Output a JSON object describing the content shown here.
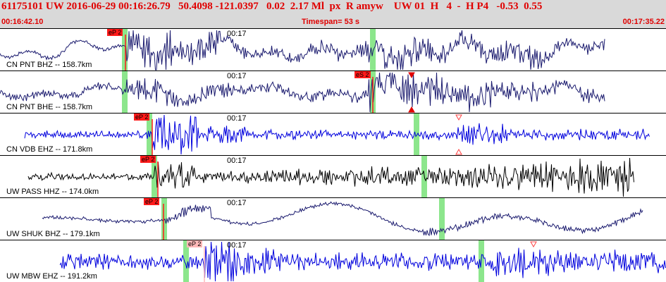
{
  "header": {
    "event_line": "61175101 UW 2016-06-29 00:16:26.79   50.4098 -121.0397   0.02  2.17 Ml  px  R amyw    UW 01  H   4  -  H P4   -0.53  0.55",
    "start_time": "00:16:42.10",
    "timespan": "Timespan=  53 s",
    "end_time": "00:17:35.22"
  },
  "colors": {
    "header_text": "#e00000",
    "header_bg": "#d9d9d9",
    "trace_navy": "#1a1a6e",
    "trace_blue": "#0000dd",
    "trace_black": "#000000",
    "pick_red": "#ff1a1a",
    "pick_pink": "#ffb8b8",
    "model_green": "#8ce68c"
  },
  "traces": [
    {
      "station": "CN PNT BHZ -- 158.7km",
      "time_tick": "00:17",
      "pick_label": "eP 2"
    },
    {
      "station": "CN PNT BHE -- 158.7km",
      "time_tick": "00:17",
      "pick_label": "eS 2"
    },
    {
      "station": "CN VDB EHZ -- 171.8km",
      "time_tick": "00:17",
      "pick_label": "eP 2"
    },
    {
      "station": "UW PASS HHZ -- 174.0km",
      "time_tick": "00:17",
      "pick_label": "eP 2"
    },
    {
      "station": "UW SHUK BHZ -- 179.1km",
      "time_tick": "00:17",
      "pick_label": "eP 2"
    },
    {
      "station": "UW MBW EHZ -- 191.2km",
      "time_tick": "00:17",
      "pick_label": "eP 2"
    }
  ]
}
